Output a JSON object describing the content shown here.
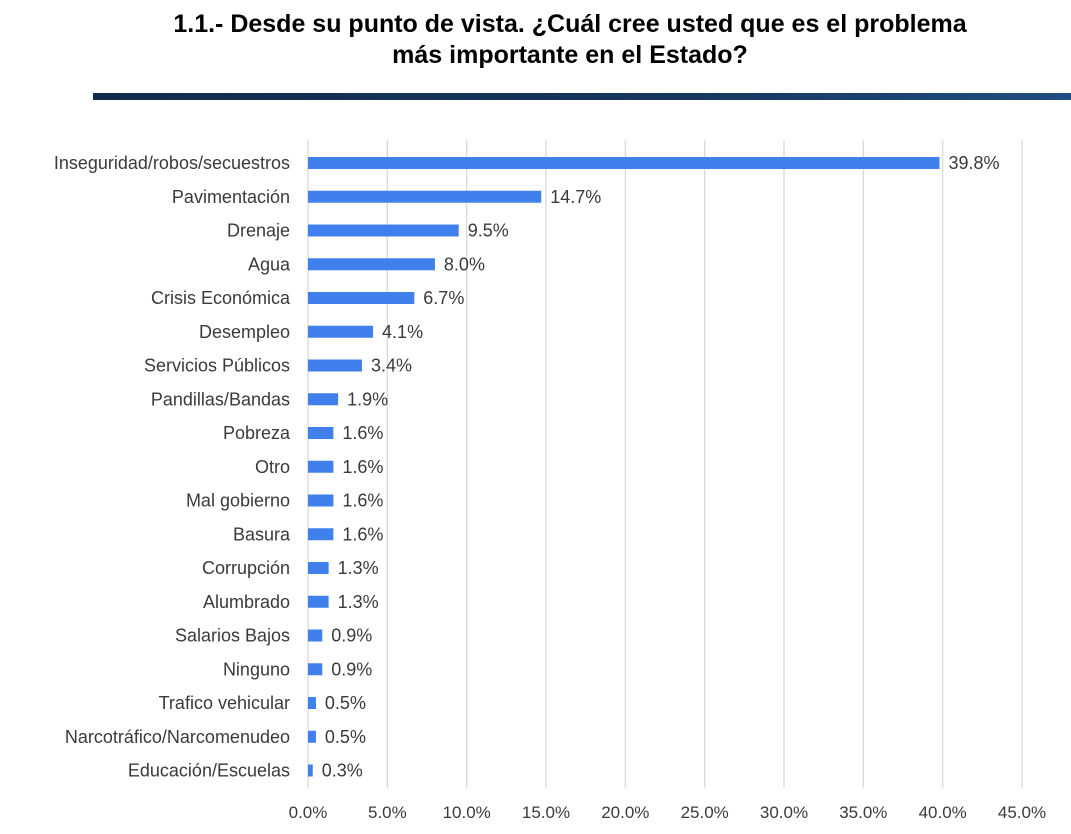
{
  "header": {
    "title_line1": "1.1.- Desde su punto de vista. ¿Cuál cree usted que es el problema",
    "title_line2": "más importante en el Estado?"
  },
  "chart_data": {
    "type": "bar",
    "orientation": "horizontal",
    "title": "1.1.- Desde su punto de vista. ¿Cuál cree usted que es el problema más importante en el Estado?",
    "categories": [
      "Inseguridad/robos/secuestros",
      "Pavimentación",
      "Drenaje",
      "Agua",
      "Crisis Económica",
      "Desempleo",
      "Servicios Públicos",
      "Pandillas/Bandas",
      "Pobreza",
      "Otro",
      "Mal gobierno",
      "Basura",
      "Corrupción",
      "Alumbrado",
      "Salarios Bajos",
      "Ninguno",
      "Trafico vehicular",
      "Narcotráfico/Narcomenudeo",
      "Educación/Escuelas"
    ],
    "values": [
      39.8,
      14.7,
      9.5,
      8.0,
      6.7,
      4.1,
      3.4,
      1.9,
      1.6,
      1.6,
      1.6,
      1.6,
      1.3,
      1.3,
      0.9,
      0.9,
      0.5,
      0.5,
      0.3
    ],
    "data_labels": [
      "39.8%",
      "14.7%",
      "9.5%",
      "8.0%",
      "6.7%",
      "4.1%",
      "3.4%",
      "1.9%",
      "1.6%",
      "1.6%",
      "1.6%",
      "1.6%",
      "1.3%",
      "1.3%",
      "0.9%",
      "0.9%",
      "0.5%",
      "0.5%",
      "0.3%"
    ],
    "xlim": [
      0,
      45
    ],
    "xticks": [
      0,
      5,
      10,
      15,
      20,
      25,
      30,
      35,
      40,
      45
    ],
    "xtick_labels": [
      "0.0%",
      "5.0%",
      "10.0%",
      "15.0%",
      "20.0%",
      "25.0%",
      "30.0%",
      "35.0%",
      "40.0%",
      "45.0%"
    ],
    "grid": true,
    "legend": false,
    "bar_color": "#4080ec",
    "grid_color": "#d9d9d9"
  }
}
